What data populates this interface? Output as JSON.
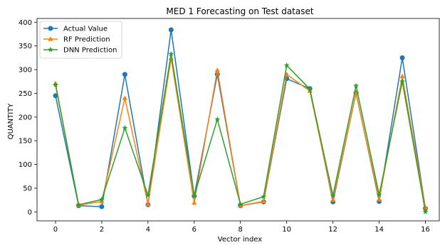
{
  "chart_data": {
    "type": "line",
    "title": "MED 1 Forecasting  on Test dataset",
    "xlabel": "Vector index",
    "ylabel": "QUANTITY",
    "xlim": [
      -0.8,
      16.6
    ],
    "ylim": [
      -19,
      408
    ],
    "xticks": [
      0,
      2,
      4,
      6,
      8,
      10,
      12,
      14,
      16
    ],
    "yticks": [
      0,
      50,
      100,
      150,
      200,
      250,
      300,
      350,
      400
    ],
    "grid": false,
    "legend_position": "upper-left",
    "x": [
      0,
      1,
      2,
      3,
      4,
      5,
      6,
      7,
      8,
      9,
      10,
      11,
      12,
      13,
      14,
      15,
      16
    ],
    "series": [
      {
        "name": "Actual Value",
        "color": "#1f77b4",
        "marker": "circle",
        "values": [
          245,
          13,
          11,
          290,
          15,
          384,
          33,
          290,
          13,
          21,
          281,
          260,
          21,
          251,
          22,
          325,
          7
        ]
      },
      {
        "name": "RF Prediction",
        "color": "#ff7f0e",
        "marker": "triangle",
        "values": [
          271,
          14,
          22,
          240,
          16,
          324,
          19,
          299,
          13,
          22,
          290,
          255,
          25,
          250,
          26,
          286,
          9
        ]
      },
      {
        "name": "DNN Prediction",
        "color": "#2ca02c",
        "marker": "star",
        "values": [
          268,
          15,
          26,
          177,
          35,
          333,
          34,
          195,
          16,
          32,
          309,
          259,
          34,
          266,
          36,
          275,
          0
        ]
      }
    ]
  }
}
